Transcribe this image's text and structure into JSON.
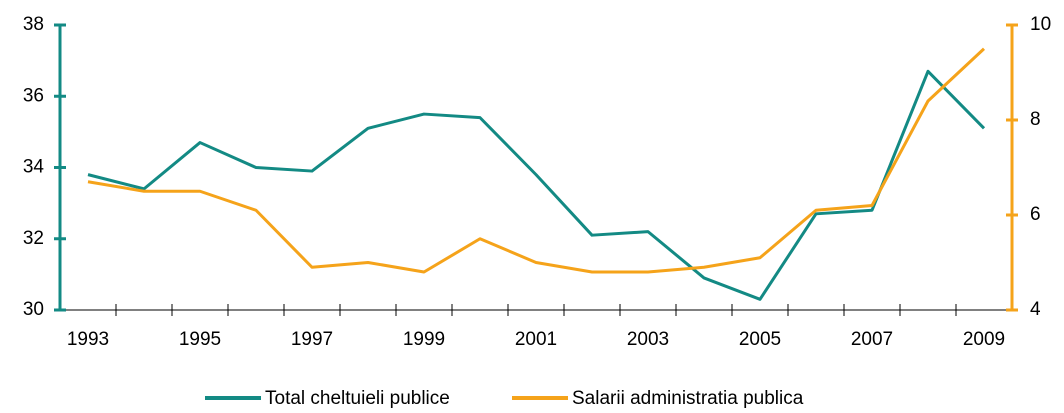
{
  "chart_data": {
    "type": "line",
    "categories": [
      "1993",
      null,
      "1995",
      null,
      "1997",
      null,
      "1999",
      null,
      "2001",
      null,
      "2003",
      null,
      "2005",
      null,
      "2007",
      null,
      "2009"
    ],
    "series": [
      {
        "name": "Total cheltuieli publice",
        "color": "#138a84",
        "values": [
          33.8,
          33.4,
          34.7,
          34.0,
          33.9,
          35.1,
          35.5,
          35.4,
          33.8,
          32.1,
          32.2,
          30.9,
          30.3,
          32.7,
          32.8,
          36.7,
          35.1
        ]
      },
      {
        "name": "Salarii administratia publica",
        "color": "#f5a31a",
        "axis": "y2",
        "values": [
          6.7,
          6.5,
          6.5,
          6.1,
          4.9,
          5.0,
          4.8,
          5.5,
          5.0,
          4.8,
          4.8,
          4.9,
          5.1,
          6.1,
          6.2,
          8.4,
          9.5
        ]
      }
    ],
    "ylim": [
      30,
      38
    ],
    "yticks": [
      30,
      32,
      34,
      36,
      38
    ],
    "y2lim": [
      4,
      10
    ],
    "y2ticks": [
      4,
      6,
      8,
      10
    ],
    "legend": "bottom"
  }
}
